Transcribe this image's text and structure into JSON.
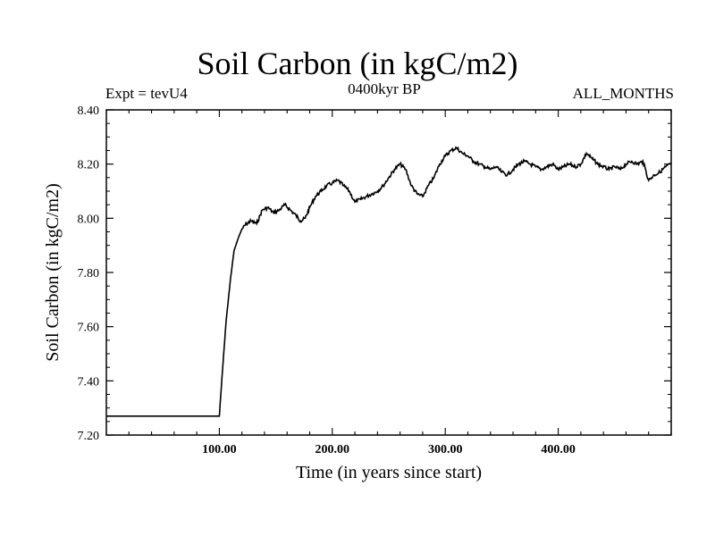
{
  "chart_data": {
    "type": "line",
    "title": "Soil Carbon (in kgC/m2)",
    "subtitle_left": "Expt = tevU4",
    "subtitle_center": "0400kyr BP",
    "subtitle_right": "ALL_MONTHS",
    "xlabel": "Time (in years since start)",
    "ylabel": "Soil Carbon (in kgC/m2)",
    "xlim": [
      0,
      500
    ],
    "ylim": [
      7.2,
      8.4
    ],
    "x_ticks": [
      100,
      200,
      300,
      400
    ],
    "x_tick_labels": [
      "100.00",
      "200.00",
      "300.00",
      "400.00"
    ],
    "y_ticks": [
      7.2,
      7.4,
      7.6,
      7.8,
      8.0,
      8.2,
      8.4
    ],
    "y_tick_labels": [
      "7.20",
      "7.40",
      "7.60",
      "7.80",
      "8.00",
      "8.20",
      "8.40"
    ],
    "grid": false,
    "series": [
      {
        "x": [
          0,
          100,
          103,
          106,
          110,
          113,
          117,
          120,
          124,
          128,
          133,
          138,
          143,
          148,
          153,
          158,
          163,
          168,
          172,
          176,
          180,
          185,
          190,
          195,
          200,
          205,
          210,
          215,
          220,
          225,
          230,
          235,
          240,
          245,
          250,
          255,
          260,
          265,
          270,
          275,
          280,
          285,
          290,
          295,
          300,
          305,
          310,
          315,
          320,
          325,
          330,
          335,
          340,
          345,
          350,
          355,
          360,
          365,
          370,
          375,
          380,
          385,
          390,
          395,
          400,
          405,
          410,
          415,
          420,
          425,
          430,
          435,
          440,
          445,
          450,
          455,
          460,
          465,
          470,
          475,
          480,
          485,
          490,
          495,
          500
        ],
        "y": [
          7.27,
          7.27,
          7.45,
          7.62,
          7.78,
          7.88,
          7.93,
          7.96,
          7.98,
          7.99,
          7.98,
          8.03,
          8.04,
          8.02,
          8.03,
          8.05,
          8.03,
          8.01,
          7.99,
          8.0,
          8.04,
          8.08,
          8.1,
          8.12,
          8.13,
          8.14,
          8.12,
          8.1,
          8.06,
          8.07,
          8.08,
          8.09,
          8.1,
          8.12,
          8.15,
          8.18,
          8.2,
          8.18,
          8.12,
          8.09,
          8.08,
          8.12,
          8.15,
          8.2,
          8.23,
          8.25,
          8.26,
          8.24,
          8.23,
          8.21,
          8.2,
          8.19,
          8.18,
          8.19,
          8.17,
          8.16,
          8.18,
          8.2,
          8.21,
          8.2,
          8.19,
          8.18,
          8.19,
          8.2,
          8.18,
          8.19,
          8.2,
          8.19,
          8.2,
          8.24,
          8.22,
          8.2,
          8.19,
          8.18,
          8.19,
          8.18,
          8.2,
          8.21,
          8.2,
          8.21,
          8.14,
          8.16,
          8.17,
          8.19,
          8.2
        ]
      }
    ]
  }
}
